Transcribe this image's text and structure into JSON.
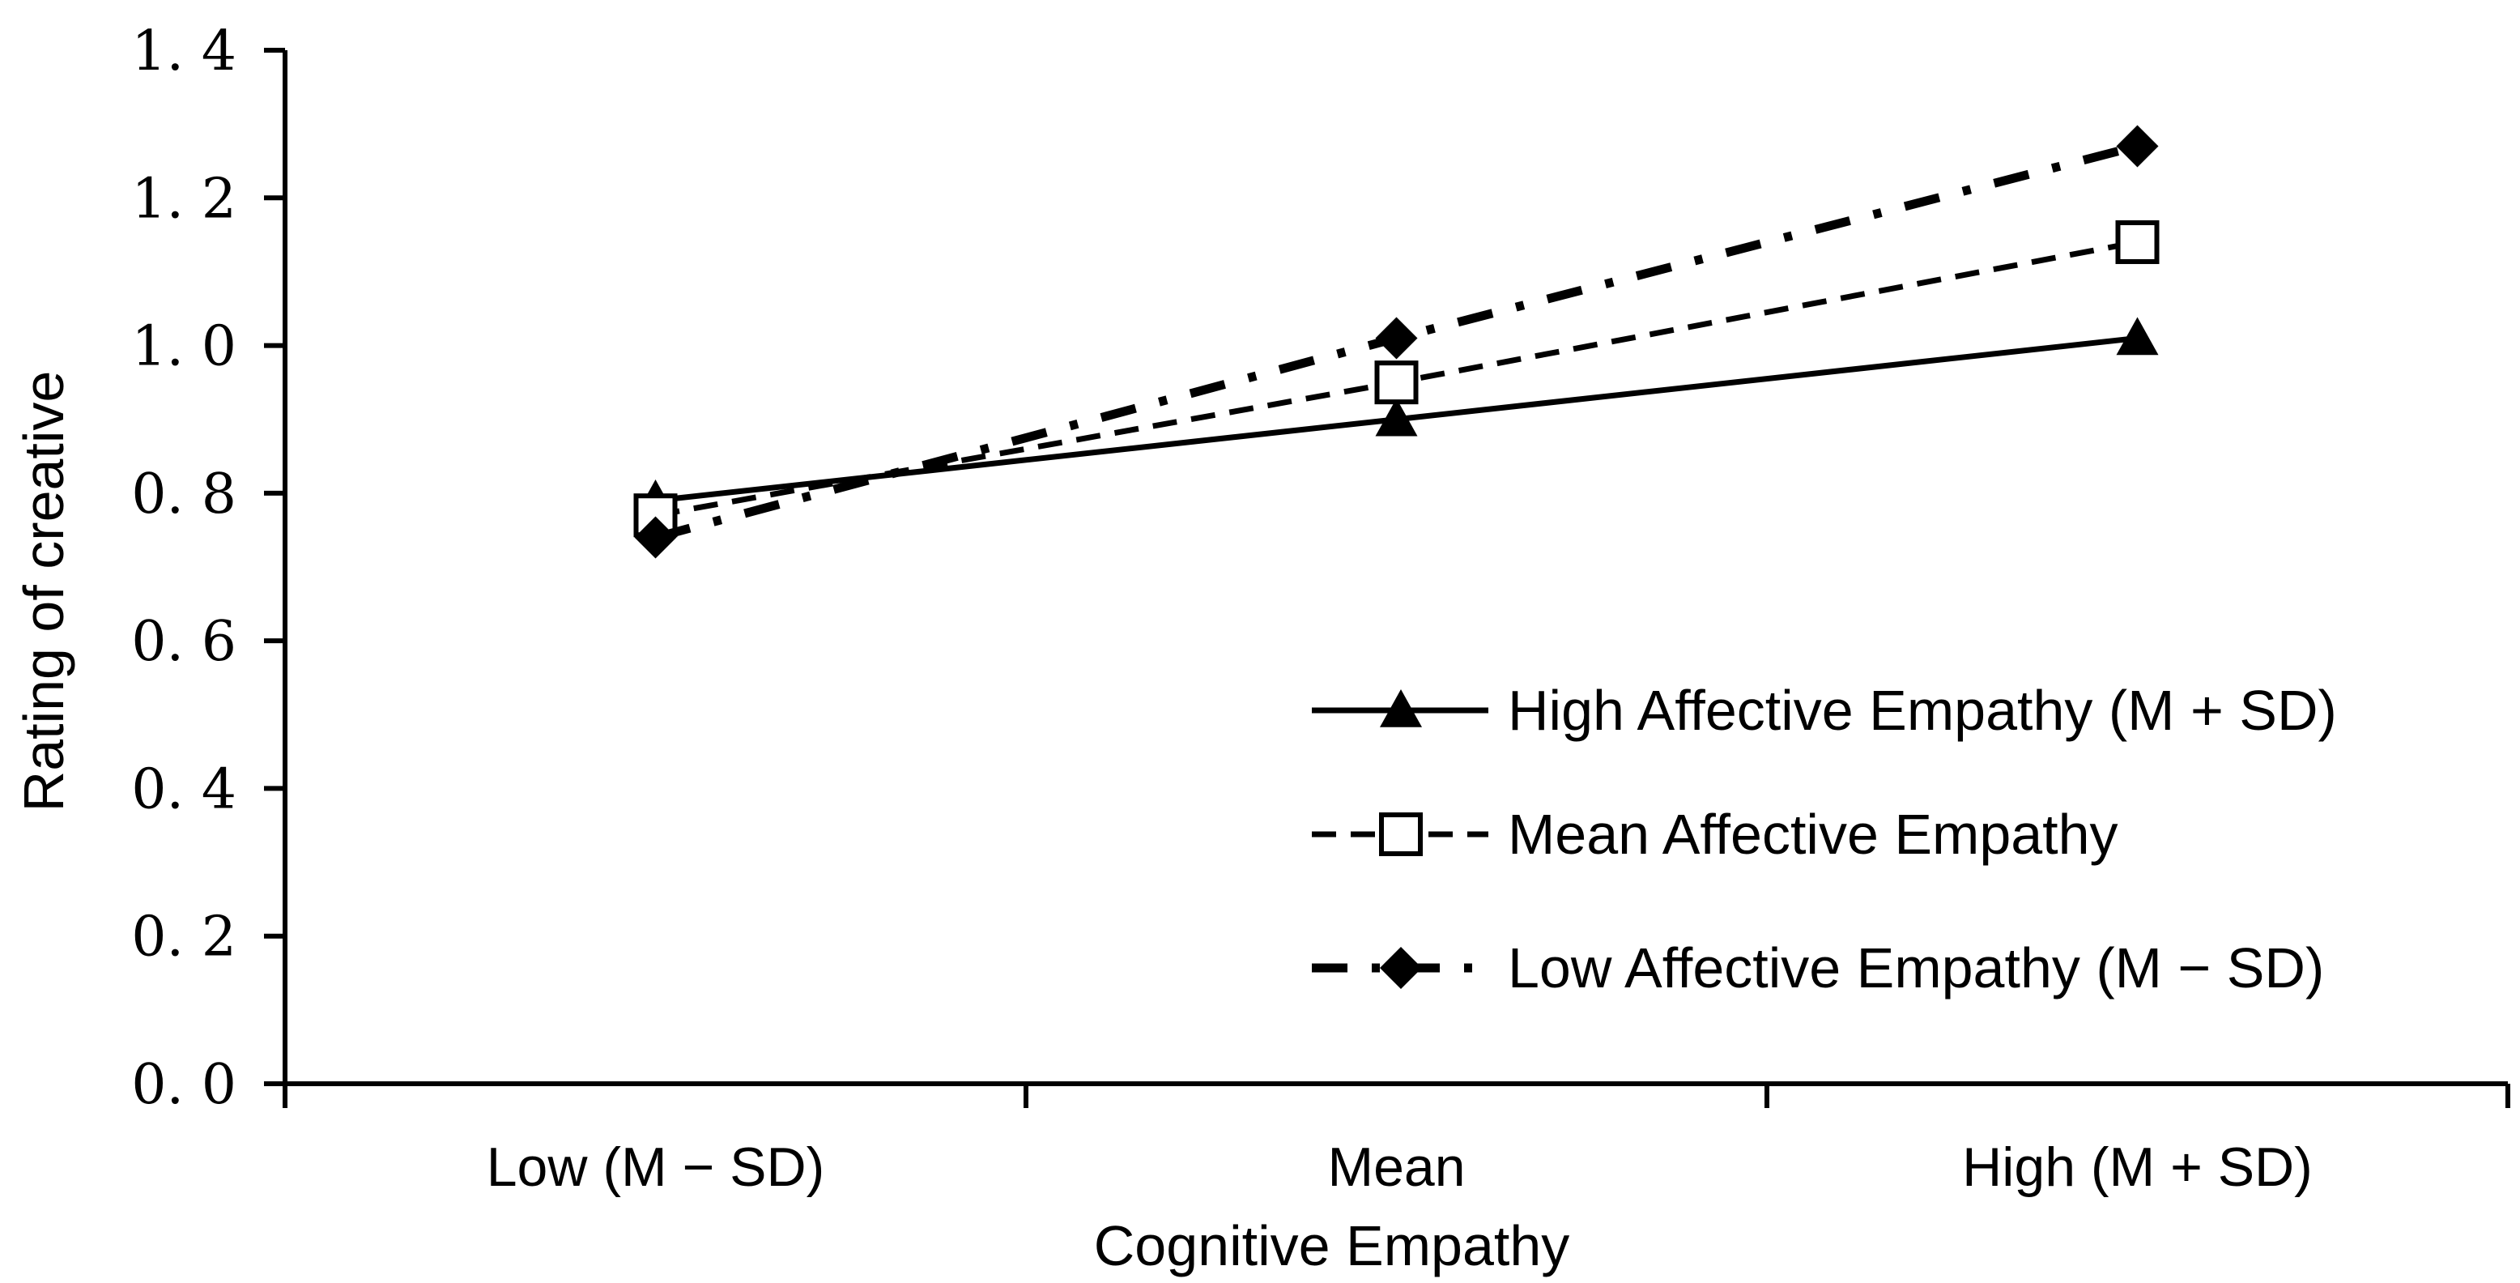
{
  "chart_data": {
    "type": "line",
    "title": "",
    "xlabel": "Cognitive Empathy",
    "ylabel": "Rating of creative",
    "categories": [
      "Low (M − SD)",
      "Mean",
      "High (M + SD)"
    ],
    "ylim": [
      0.0,
      1.4
    ],
    "yticks": [
      "0.0",
      "0.2",
      "0.4",
      "0.6",
      "0.8",
      "1.0",
      "1.2",
      "1.4"
    ],
    "grid": false,
    "legend_position": "bottom-right",
    "series": [
      {
        "name": "High Affective Empathy (M + SD)",
        "values": [
          0.79,
          0.9,
          1.01
        ],
        "marker": "triangle",
        "line_style": "solid"
      },
      {
        "name": "Mean Affective Empathy",
        "values": [
          0.77,
          0.95,
          1.14
        ],
        "marker": "square-open",
        "line_style": "dashed"
      },
      {
        "name": "Low Affective Empathy (M − SD)",
        "values": [
          0.74,
          1.01,
          1.27
        ],
        "marker": "diamond",
        "line_style": "dash-dot"
      }
    ],
    "colors": {
      "line": "#000000",
      "background": "#ffffff"
    }
  }
}
